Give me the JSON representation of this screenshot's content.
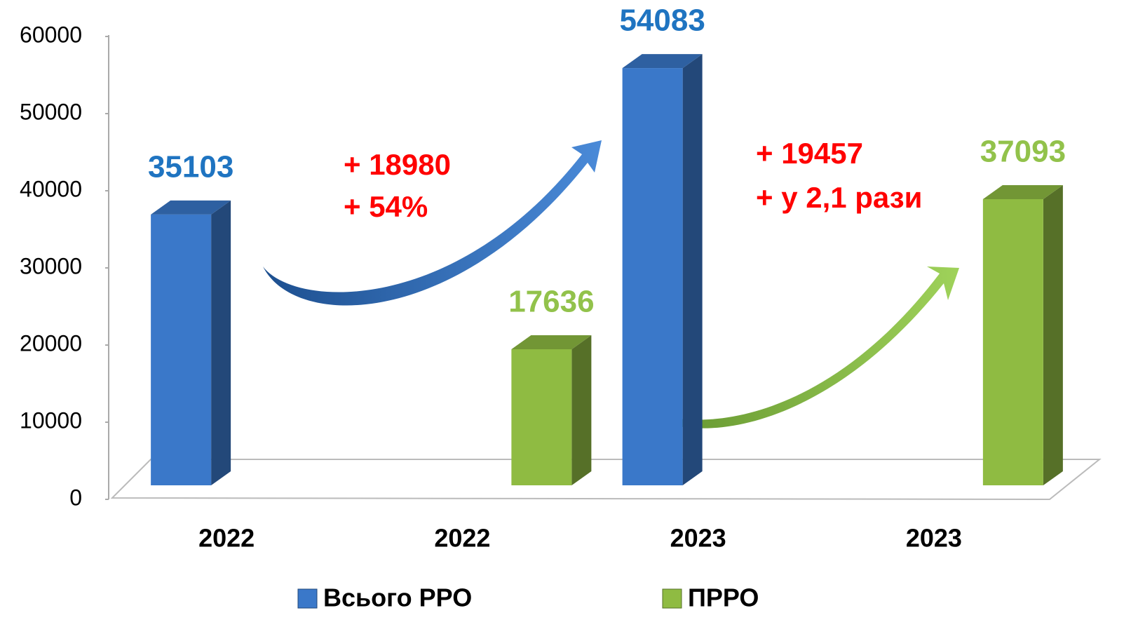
{
  "chart_data": {
    "type": "bar",
    "categories": [
      "2022",
      "2022",
      "2023",
      "2023"
    ],
    "series": [
      {
        "name": "Всього РРО",
        "color": "#3a78c9",
        "label_color": "#1f74c1",
        "values": [
          35103,
          null,
          54083,
          null
        ]
      },
      {
        "name": "ПРРО",
        "color": "#8fbb42",
        "label_color": "#92c24b",
        "values": [
          null,
          17636,
          null,
          37093
        ]
      }
    ],
    "ylim": [
      0,
      60000
    ],
    "yticks": [
      0,
      10000,
      20000,
      30000,
      40000,
      50000,
      60000
    ],
    "annotations": [
      "+ 18980",
      "+ 54%",
      "+ 19457",
      "+ у 2,1 рази"
    ]
  }
}
